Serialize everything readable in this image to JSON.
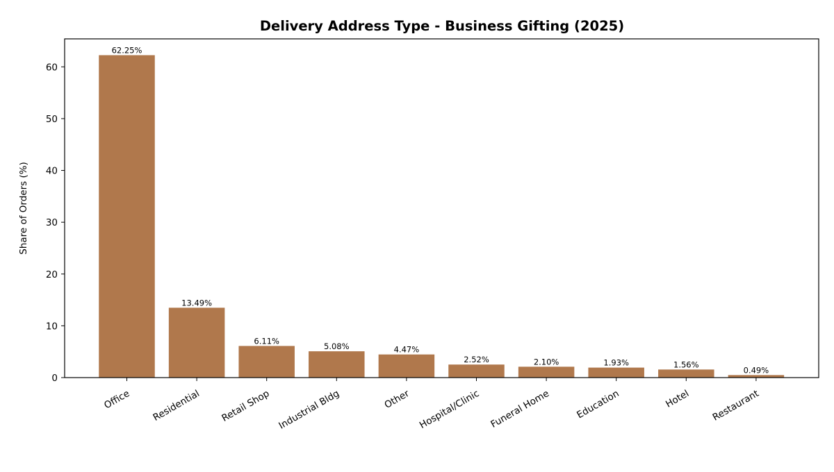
{
  "chart_data": {
    "type": "bar",
    "title": "Delivery Address Type - Business Gifting (2025)",
    "xlabel": "",
    "ylabel": "Share of Orders (%)",
    "categories": [
      "Office",
      "Residential",
      "Retail Shop",
      "Industrial Bldg",
      "Other",
      "Hospital/Clinic",
      "Funeral Home",
      "Education",
      "Hotel",
      "Restaurant"
    ],
    "values": [
      62.25,
      13.49,
      6.11,
      5.08,
      4.47,
      2.52,
      2.1,
      1.93,
      1.56,
      0.49
    ],
    "data_labels": [
      "62.25%",
      "13.49%",
      "6.11%",
      "5.08%",
      "4.47%",
      "2.52%",
      "2.10%",
      "1.93%",
      "1.56%",
      "0.49%"
    ],
    "yticks": [
      0,
      10,
      20,
      30,
      40,
      50,
      60
    ],
    "ylim": [
      0,
      65.4
    ],
    "grid": false,
    "legend": "none",
    "bar_color": "#b0784c"
  }
}
